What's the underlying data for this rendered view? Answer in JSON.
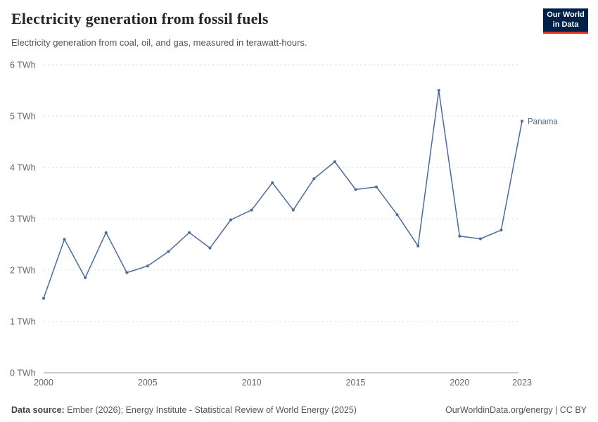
{
  "header": {
    "title": "Electricity generation from fossil fuels",
    "subtitle": "Electricity generation from coal, oil, and gas, measured in terawatt-hours.",
    "logo": {
      "line1": "Our World",
      "line2": "in Data",
      "bg_color": "#002147",
      "accent_color": "#e0351f"
    }
  },
  "chart_data": {
    "type": "line",
    "title": "Electricity generation from fossil fuels",
    "subtitle": "Electricity generation from coal, oil, and gas, measured in terawatt-hours.",
    "series": [
      {
        "name": "Panama",
        "values": [
          1.45,
          2.6,
          1.85,
          2.73,
          1.95,
          2.08,
          2.36,
          2.73,
          2.43,
          2.98,
          3.17,
          3.7,
          3.17,
          3.78,
          4.11,
          3.57,
          3.62,
          3.08,
          2.47,
          5.5,
          2.66,
          2.61,
          2.78,
          4.9
        ]
      }
    ],
    "x": [
      2000,
      2001,
      2002,
      2003,
      2004,
      2005,
      2006,
      2007,
      2008,
      2009,
      2010,
      2011,
      2012,
      2013,
      2014,
      2015,
      2016,
      2017,
      2018,
      2019,
      2020,
      2021,
      2022,
      2023
    ],
    "xticks": [
      2000,
      2005,
      2010,
      2015,
      2020,
      2023
    ],
    "yticks": [
      0,
      1,
      2,
      3,
      4,
      5,
      6
    ],
    "ytick_suffix": " TWh",
    "ylim": [
      0,
      6
    ],
    "grid": true,
    "grid_style": "dotted",
    "legend_position": "end-of-line-label",
    "line_color": "#4c6a9c",
    "axis_text_color": "#666666",
    "grid_color": "#d9d9d9",
    "axis_line_color": "#999999"
  },
  "footer": {
    "source_label": "Data source:",
    "source_text": " Ember (2026); Energy Institute - Statistical Review of World Energy (2025)",
    "right_text": "OurWorldinData.org/energy | CC BY"
  }
}
